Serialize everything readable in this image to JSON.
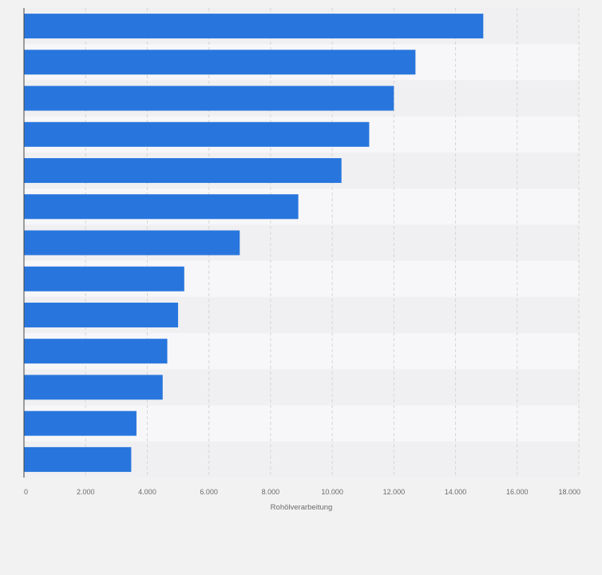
{
  "colors": {
    "background": "#f2f2f2",
    "band_light": "#f7f7f9",
    "band_dark": "#f0f0f2",
    "bar": "#2876dd",
    "grid": "#d6d6d6",
    "axis": "#444444"
  },
  "chart_data": {
    "type": "bar",
    "orientation": "horizontal",
    "title": "",
    "xlabel": "Rohölverarbeitung",
    "ylabel": "",
    "xlim": [
      0,
      18000
    ],
    "x_ticks": [
      0,
      2000,
      4000,
      6000,
      8000,
      10000,
      12000,
      14000,
      16000,
      18000
    ],
    "x_tick_labels": [
      "0",
      "2.000",
      "4.000",
      "6.000",
      "8.000",
      "10.000",
      "12.000",
      "14.000",
      "16.000",
      "18.000"
    ],
    "grid": true,
    "categories": [
      "",
      "",
      "",
      "",
      "",
      "",
      "",
      "",
      "",
      "",
      "",
      "",
      ""
    ],
    "values": [
      14900,
      12700,
      12000,
      11200,
      10300,
      8900,
      7000,
      5200,
      5000,
      4650,
      4500,
      3650,
      3480
    ]
  }
}
